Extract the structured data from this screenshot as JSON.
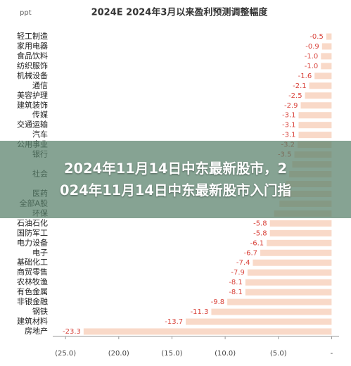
{
  "chart_data": {
    "type": "barh",
    "title": "2024E 2024年3月以来盈利预测调整幅度",
    "unit": "ppt",
    "categories": [
      "轻工制造",
      "家用电器",
      "食品饮料",
      "纺织服饰",
      "机械设备",
      "通信",
      "美容护理",
      "建筑装饰",
      "传媒",
      "交通运输",
      "汽车",
      "公用事业",
      "银行",
      null,
      "社会",
      null,
      "医药",
      "全部A股",
      "环保",
      "石油石化",
      "国防军工",
      "电力设备",
      "电子",
      "基础化工",
      "商贸零售",
      "农林牧渔",
      "有色金属",
      "非银金融",
      "钢铁",
      "建筑材料",
      "房地产"
    ],
    "values": [
      -0.5,
      -0.9,
      -1.0,
      -1.0,
      -1.6,
      -2.1,
      -2.5,
      -2.9,
      -3.1,
      -3.1,
      -3.1,
      -3.2,
      -3.5,
      -3.7,
      -4.0,
      -4.3,
      -4.6,
      -4.9,
      -5.4,
      -5.8,
      -5.8,
      -6.1,
      -6.7,
      -7.4,
      -7.9,
      -8.1,
      -8.1,
      -9.8,
      -11.3,
      -13.7,
      -23.3
    ],
    "value_labels": [
      "-0.5",
      "-0.9",
      "-1.0",
      "-1.0",
      "-1.6",
      "-2.1",
      "-2.5",
      "-2.9",
      "-3.1",
      "-3.1",
      "-3.1",
      "-3.2",
      "-3.5",
      null,
      null,
      null,
      null,
      null,
      null,
      "-5.8",
      "-5.8",
      "-6.1",
      "-6.7",
      "-7.4",
      "-7.9",
      "-8.1",
      "-8.1",
      "-9.8",
      "-11.3",
      "-13.7",
      "-23.3"
    ],
    "color": "#f9d9c8",
    "label_color": "#d9443c",
    "xlim": [
      -26.2,
      0.7
    ],
    "xticks": [
      {
        "value": -25,
        "label": "(25.0)"
      },
      {
        "value": -20,
        "label": "(20.0)"
      },
      {
        "value": -15,
        "label": "(15.0)"
      },
      {
        "value": -10,
        "label": "(10.0)"
      },
      {
        "value": -5,
        "label": "(5.0)"
      },
      {
        "value": 0,
        "label": "-"
      }
    ]
  },
  "overlay": {
    "lines": [
      "2024年11月14日中东最新股市，2",
      "024年11月14日中东最新股市入门指"
    ]
  }
}
